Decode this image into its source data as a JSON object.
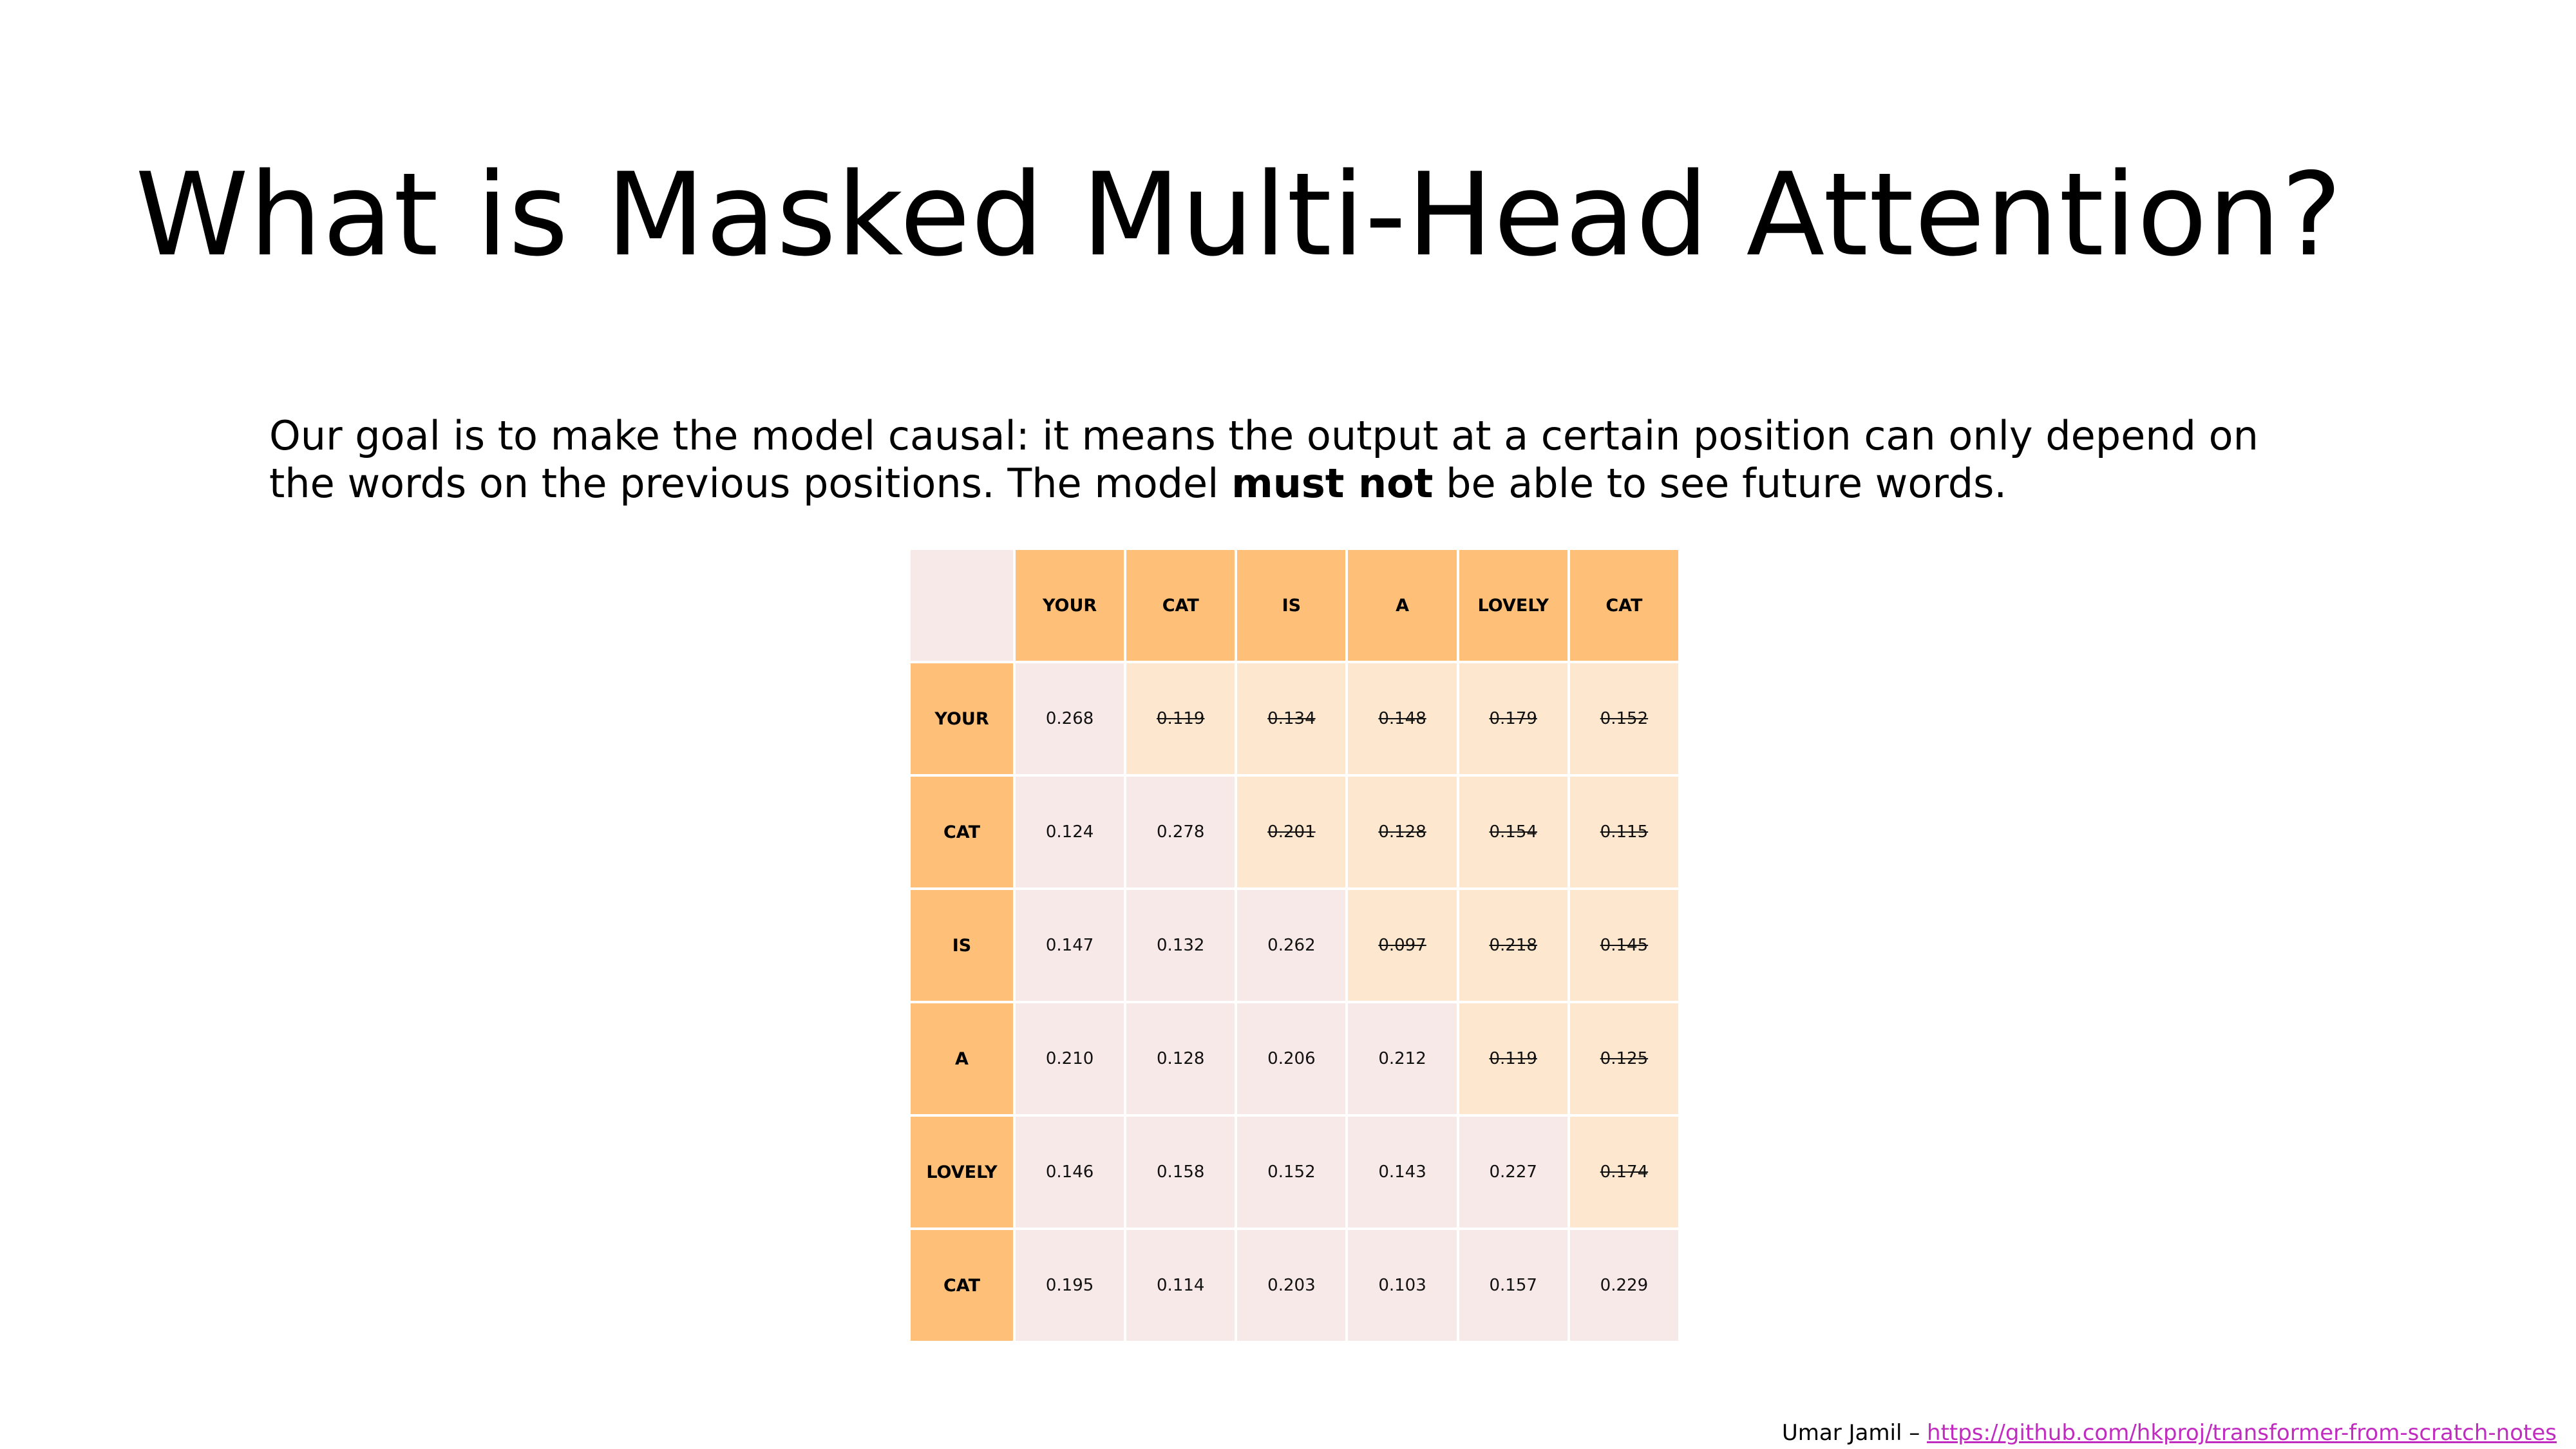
{
  "slide": {
    "title": "What is Masked Multi-Head Attention?",
    "intro_before": "Our goal is to make the model causal: it means the output at a certain position can only depend on the words on the previous positions. The model ",
    "intro_bold": "must not",
    "intro_after": " be able to see future words."
  },
  "matrix": {
    "column_headers": [
      "YOUR",
      "CAT",
      "IS",
      "A",
      "LOVELY",
      "CAT"
    ],
    "rows": [
      {
        "label": "YOUR",
        "values": [
          "0.268",
          "0.119",
          "0.134",
          "0.148",
          "0.179",
          "0.152"
        ]
      },
      {
        "label": "CAT",
        "values": [
          "0.124",
          "0.278",
          "0.201",
          "0.128",
          "0.154",
          "0.115"
        ]
      },
      {
        "label": "IS",
        "values": [
          "0.147",
          "0.132",
          "0.262",
          "0.097",
          "0.218",
          "0.145"
        ]
      },
      {
        "label": "A",
        "values": [
          "0.210",
          "0.128",
          "0.206",
          "0.212",
          "0.119",
          "0.125"
        ]
      },
      {
        "label": "LOVELY",
        "values": [
          "0.146",
          "0.158",
          "0.152",
          "0.143",
          "0.227",
          "0.174"
        ]
      },
      {
        "label": "CAT",
        "values": [
          "0.195",
          "0.114",
          "0.203",
          "0.103",
          "0.157",
          "0.229"
        ]
      }
    ],
    "colors": {
      "header": "#fec078",
      "visible_cell": "#f8e9e9",
      "masked_cell": "#fde8cf"
    }
  },
  "footer": {
    "author": "Umar Jamil – ",
    "link_text": "https://github.com/hkproj/transformer-from-scratch-notes"
  }
}
